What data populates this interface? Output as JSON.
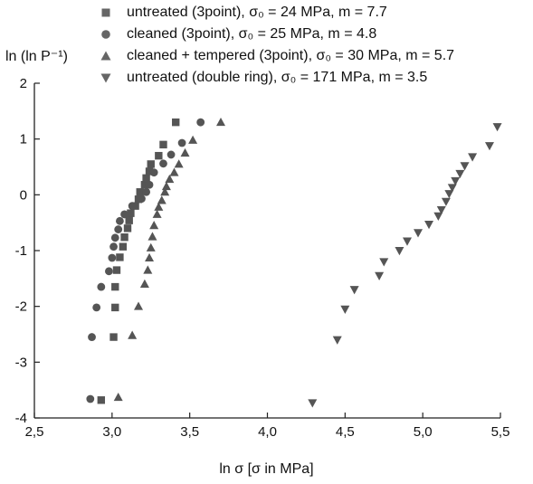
{
  "chart_data": {
    "type": "scatter",
    "xlabel": "ln σ [σ in MPa]",
    "ylabel": "ln (ln P⁻¹)",
    "xlim": [
      2.5,
      5.5
    ],
    "ylim": [
      -4,
      2
    ],
    "xticks": [
      "2,5",
      "3,0",
      "3,5",
      "4,0",
      "4,5",
      "5,0",
      "5,5"
    ],
    "yticks": [
      "-4",
      "-3",
      "-2",
      "-1",
      "0",
      "1",
      "2"
    ],
    "grid": false,
    "legend_position": "top",
    "series": [
      {
        "name": "untreated (3point), σ₀ = 24 MPa, m = 7.7",
        "marker": "square",
        "points": [
          [
            2.93,
            -3.68
          ],
          [
            3.01,
            -2.55
          ],
          [
            3.02,
            -2.02
          ],
          [
            3.02,
            -1.65
          ],
          [
            3.03,
            -1.35
          ],
          [
            3.05,
            -1.12
          ],
          [
            3.07,
            -0.93
          ],
          [
            3.08,
            -0.76
          ],
          [
            3.1,
            -0.6
          ],
          [
            3.11,
            -0.46
          ],
          [
            3.12,
            -0.33
          ],
          [
            3.15,
            -0.2
          ],
          [
            3.17,
            -0.08
          ],
          [
            3.18,
            0.05
          ],
          [
            3.21,
            0.18
          ],
          [
            3.22,
            0.3
          ],
          [
            3.24,
            0.42
          ],
          [
            3.25,
            0.55
          ],
          [
            3.3,
            0.7
          ],
          [
            3.33,
            0.9
          ],
          [
            3.41,
            1.3
          ]
        ]
      },
      {
        "name": "cleaned (3point), σ₀ = 25 MPa, m = 4.8",
        "marker": "circle",
        "points": [
          [
            2.86,
            -3.66
          ],
          [
            2.87,
            -2.55
          ],
          [
            2.9,
            -2.02
          ],
          [
            2.93,
            -1.65
          ],
          [
            2.98,
            -1.37
          ],
          [
            3.0,
            -1.13
          ],
          [
            3.01,
            -0.93
          ],
          [
            3.02,
            -0.77
          ],
          [
            3.04,
            -0.62
          ],
          [
            3.05,
            -0.47
          ],
          [
            3.08,
            -0.35
          ],
          [
            3.13,
            -0.2
          ],
          [
            3.19,
            -0.07
          ],
          [
            3.22,
            0.05
          ],
          [
            3.24,
            0.18
          ],
          [
            3.27,
            0.4
          ],
          [
            3.33,
            0.56
          ],
          [
            3.38,
            0.72
          ],
          [
            3.45,
            0.93
          ],
          [
            3.57,
            1.3
          ]
        ]
      },
      {
        "name": "cleaned + tempered (3point), σ₀ = 30 MPa, m = 5.7",
        "marker": "triangle-up",
        "points": [
          [
            3.04,
            -3.63
          ],
          [
            3.13,
            -2.52
          ],
          [
            3.17,
            -2.0
          ],
          [
            3.21,
            -1.6
          ],
          [
            3.23,
            -1.35
          ],
          [
            3.24,
            -1.13
          ],
          [
            3.25,
            -0.95
          ],
          [
            3.26,
            -0.75
          ],
          [
            3.27,
            -0.55
          ],
          [
            3.29,
            -0.35
          ],
          [
            3.3,
            -0.22
          ],
          [
            3.32,
            -0.1
          ],
          [
            3.34,
            0.05
          ],
          [
            3.35,
            0.15
          ],
          [
            3.37,
            0.28
          ],
          [
            3.4,
            0.4
          ],
          [
            3.43,
            0.55
          ],
          [
            3.47,
            0.75
          ],
          [
            3.52,
            0.98
          ],
          [
            3.7,
            1.3
          ]
        ]
      },
      {
        "name": "untreated (double ring), σ₀ = 171 MPa, m = 3.5",
        "marker": "triangle-down",
        "points": [
          [
            4.29,
            -3.73
          ],
          [
            4.45,
            -2.6
          ],
          [
            4.5,
            -2.05
          ],
          [
            4.56,
            -1.7
          ],
          [
            4.72,
            -1.45
          ],
          [
            4.75,
            -1.2
          ],
          [
            4.85,
            -1.0
          ],
          [
            4.9,
            -0.83
          ],
          [
            4.97,
            -0.68
          ],
          [
            5.04,
            -0.53
          ],
          [
            5.1,
            -0.38
          ],
          [
            5.12,
            -0.27
          ],
          [
            5.15,
            -0.12
          ],
          [
            5.17,
            0.02
          ],
          [
            5.19,
            0.13
          ],
          [
            5.21,
            0.25
          ],
          [
            5.24,
            0.38
          ],
          [
            5.27,
            0.52
          ],
          [
            5.32,
            0.68
          ],
          [
            5.43,
            0.88
          ],
          [
            5.48,
            1.22
          ]
        ]
      }
    ]
  }
}
